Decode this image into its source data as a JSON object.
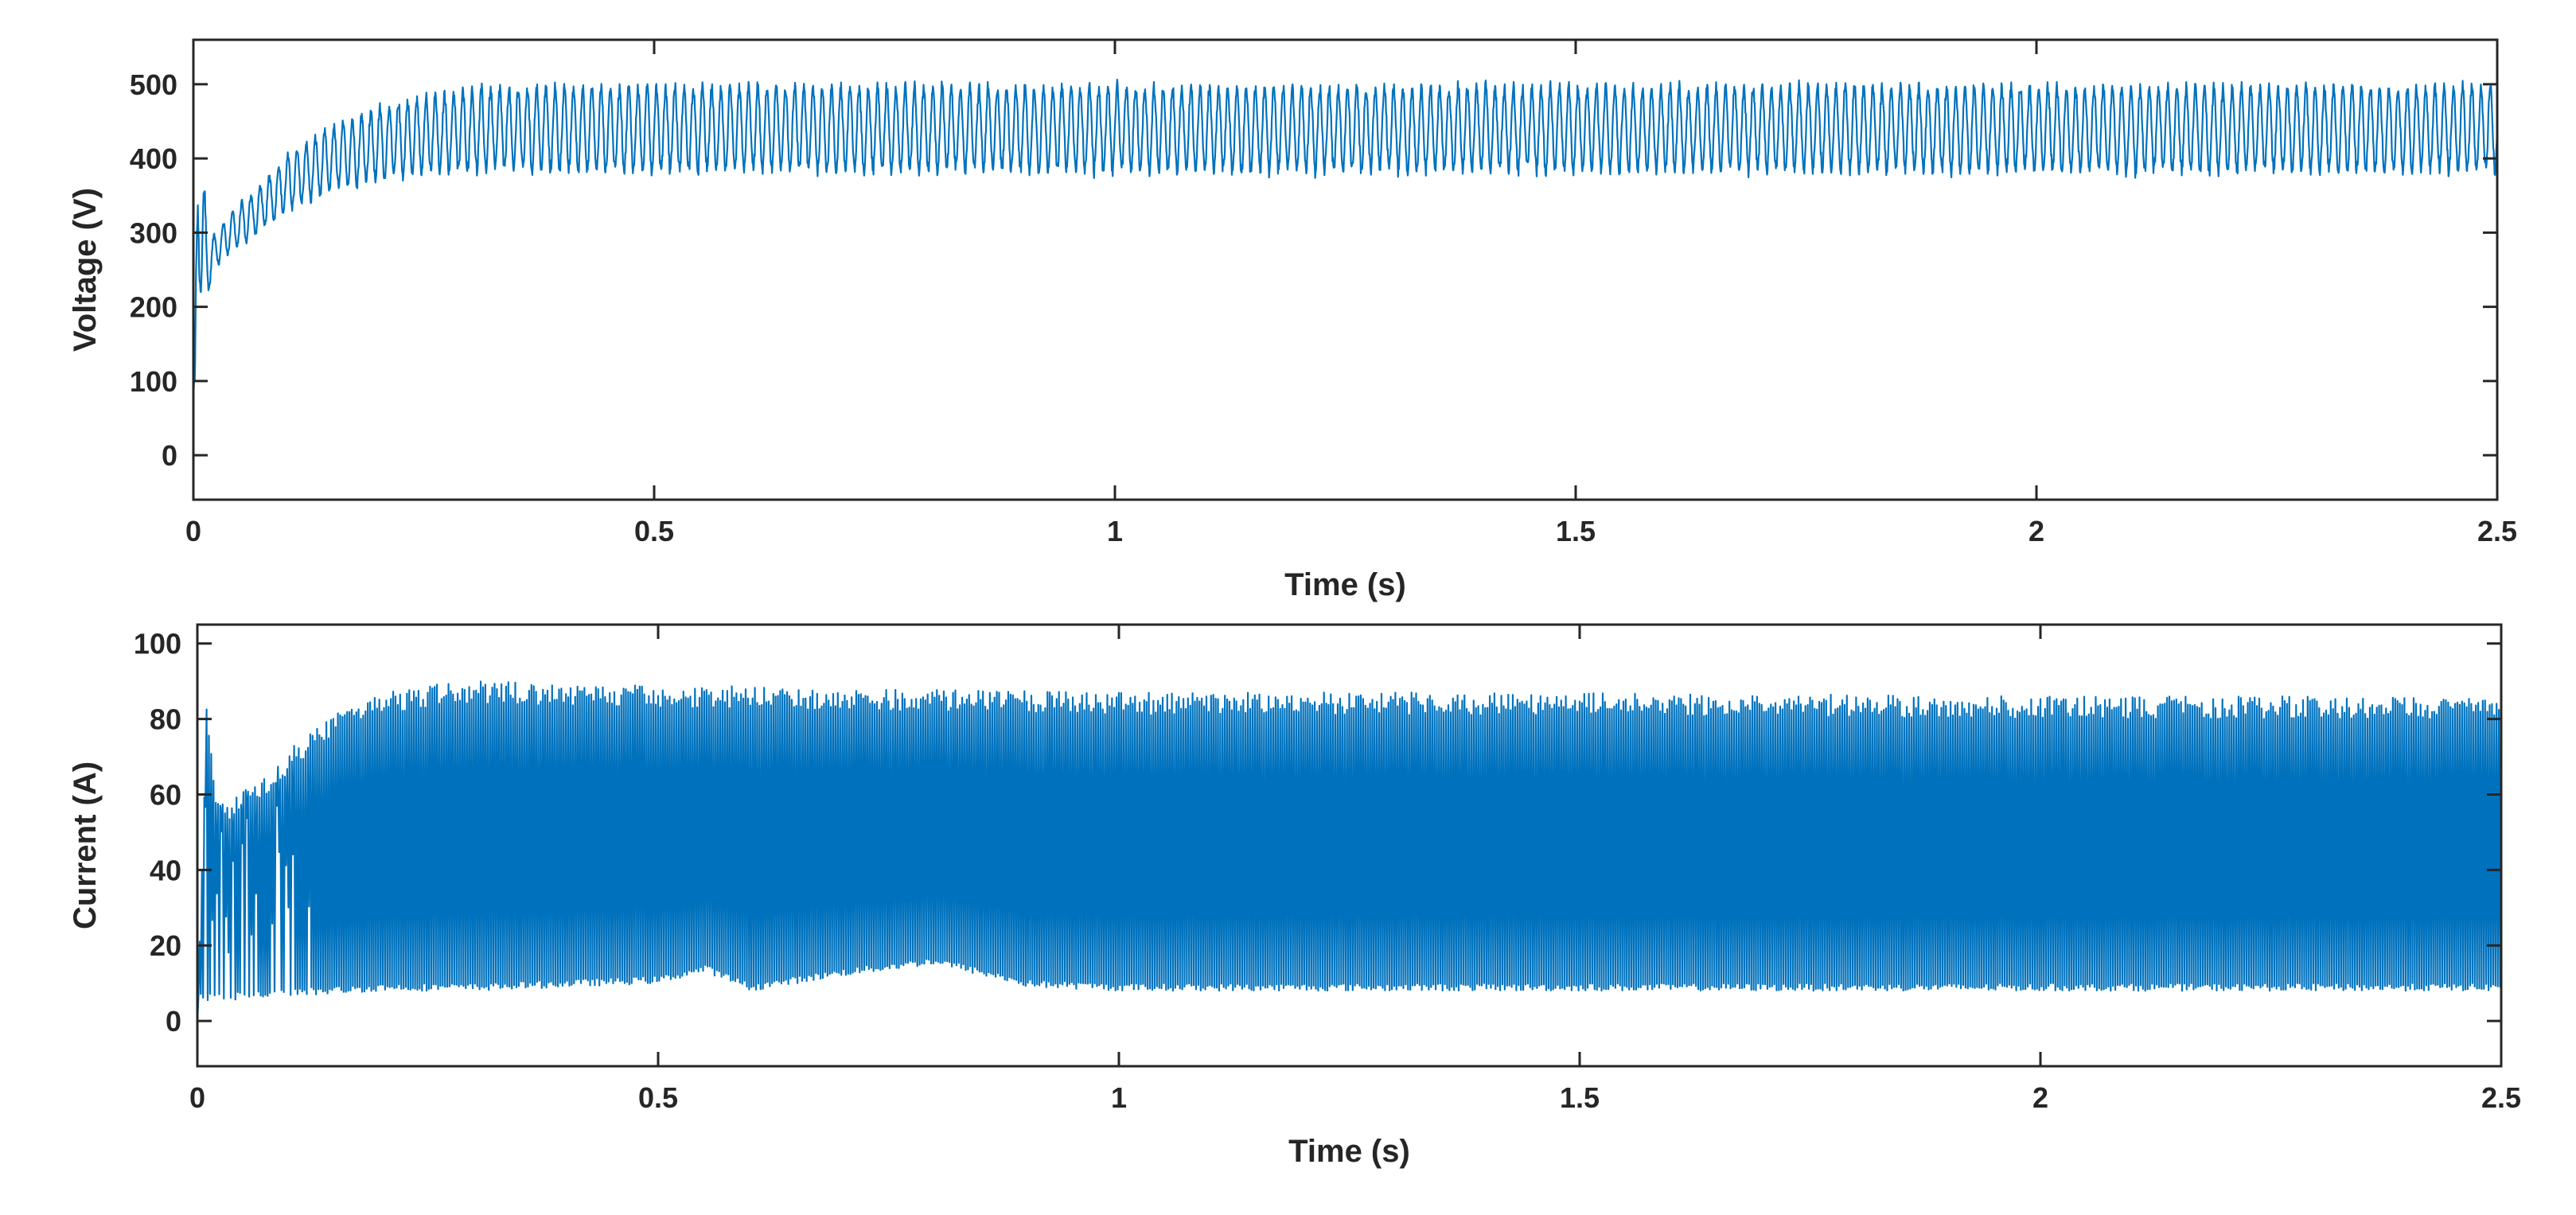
{
  "chart_data": [
    {
      "type": "line",
      "title": "",
      "xlabel": "Time (s)",
      "ylabel": "Voltage (V)",
      "xlim": [
        0,
        2.5
      ],
      "ylim": [
        -60,
        560
      ],
      "xticks": [
        0,
        0.5,
        1,
        1.5,
        2,
        2.5
      ],
      "xtick_labels": [
        "0",
        "0.5",
        "1",
        "1.5",
        "2",
        "2.5"
      ],
      "yticks": [
        0,
        100,
        200,
        300,
        400,
        500
      ],
      "ytick_labels": [
        "0",
        "100",
        "200",
        "300",
        "400",
        "500"
      ],
      "grid": false,
      "series_color": "#0072BD",
      "series": [
        {
          "x": [
            0,
            0.005,
            0.01,
            0.015,
            0.02,
            0.03,
            0.04,
            0.05,
            0.07,
            0.1,
            0.15,
            0.2,
            0.25,
            0.3,
            0.35,
            0.5,
            1.0,
            1.5,
            2.0,
            2.5
          ],
          "center": [
            0,
            330,
            300,
            250,
            270,
            285,
            300,
            310,
            330,
            365,
            400,
            420,
            432,
            438,
            440,
            440,
            440,
            440,
            440,
            440
          ],
          "ripple": [
            0,
            95,
            120,
            45,
            25,
            25,
            28,
            30,
            32,
            38,
            45,
            50,
            55,
            58,
            60,
            60,
            60,
            60,
            60,
            60
          ],
          "ripple_period": 0.01
        }
      ]
    },
    {
      "type": "line",
      "title": "",
      "xlabel": "Time (s)",
      "ylabel": "Current (A)",
      "xlim": [
        0,
        2.5
      ],
      "ylim": [
        -12,
        105
      ],
      "xticks": [
        0,
        0.5,
        1,
        1.5,
        2,
        2.5
      ],
      "xtick_labels": [
        "0",
        "0.5",
        "1",
        "1.5",
        "2",
        "2.5"
      ],
      "yticks": [
        0,
        20,
        40,
        60,
        80,
        100
      ],
      "ytick_labels": [
        "0",
        "20",
        "40",
        "60",
        "80",
        "100"
      ],
      "grid": false,
      "series_color": "#0072BD",
      "series": [
        {
          "upper_envelope": {
            "x": [
              0,
              0.01,
              0.02,
              0.03,
              0.05,
              0.08,
              0.1,
              0.15,
              0.2,
              0.25,
              0.3,
              0.5,
              1.0,
              1.5,
              2.0,
              2.5
            ],
            "y": [
              0,
              85,
              60,
              58,
              62,
              66,
              72,
              82,
              87,
              89,
              90,
              89,
              87,
              87,
              86,
              86
            ]
          },
          "lower_envelope": {
            "x": [
              0,
              0.2,
              0.3,
              0.5,
              0.55,
              0.6,
              0.7,
              0.8,
              0.85,
              0.9,
              1.0,
              1.5,
              2.0,
              2.5
            ],
            "y": [
              5,
              8,
              8,
              10,
              13,
              8,
              12,
              15,
              12,
              9,
              8,
              8,
              8,
              8
            ]
          },
          "switching_period": 0.01
        }
      ]
    }
  ]
}
